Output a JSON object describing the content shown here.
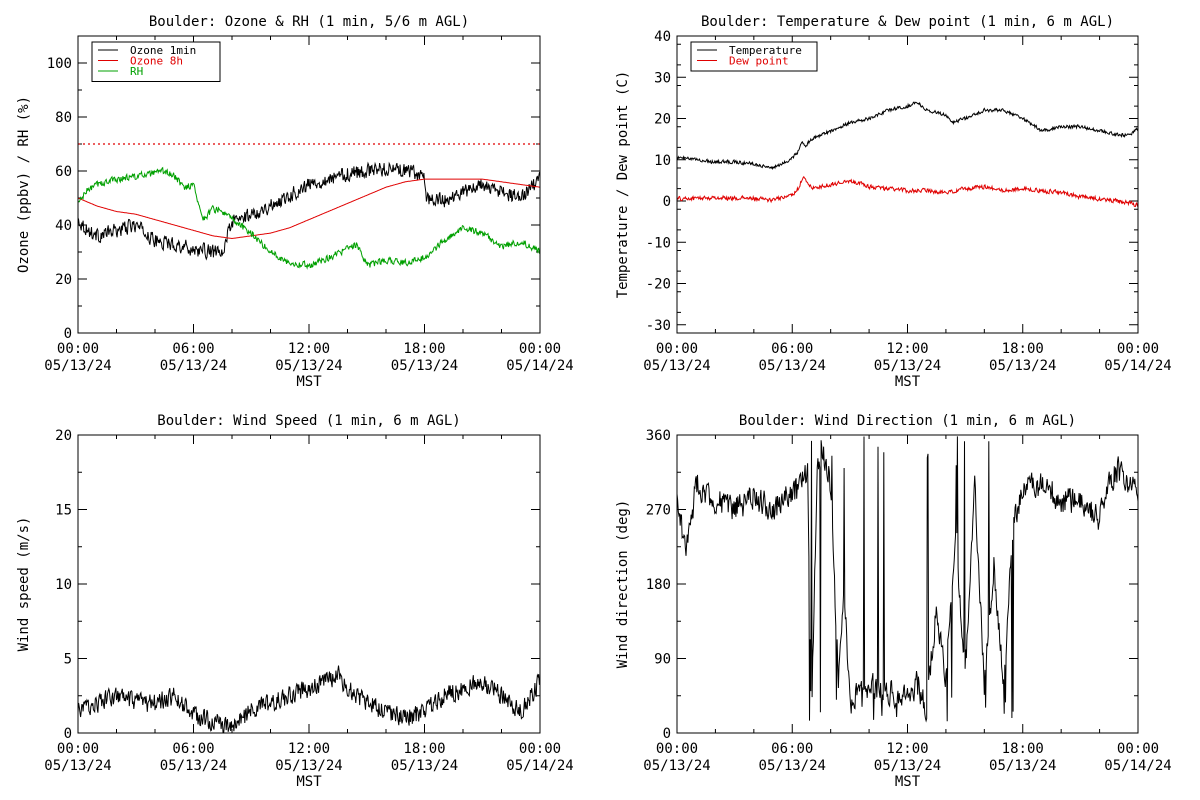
{
  "time_axis": {
    "unit": "hours since 05/13/24 00:00 MST",
    "tick_times": [
      "00:00",
      "06:00",
      "12:00",
      "18:00",
      "00:00"
    ],
    "tick_dates": [
      "05/13/24",
      "05/13/24",
      "05/13/24",
      "05/13/24",
      "05/14/24"
    ],
    "xlabel": "MST"
  },
  "chart_data": [
    {
      "type": "line",
      "title": "Boulder: Ozone & RH (1 min, 5/6 m AGL)",
      "xlabel": "MST",
      "ylabel": "Ozone (ppbv) / RH (%)",
      "xlim": [
        0,
        24
      ],
      "ylim": [
        0,
        110
      ],
      "yticks": [
        "0",
        "20",
        "40",
        "60",
        "80",
        "100"
      ],
      "legend_position": "top-left",
      "reference_line": {
        "y": 70,
        "color": "#e00000",
        "style": "dotted"
      },
      "series": [
        {
          "name": "Ozone 1min",
          "color": "#000000",
          "noise": 2.5,
          "x": [
            0,
            0.5,
            1,
            2,
            3,
            4,
            5,
            6,
            7,
            7.6,
            7.7,
            8,
            9,
            10,
            11,
            12,
            13,
            14,
            15,
            16,
            17,
            18,
            18.1,
            19,
            20,
            21,
            22,
            23,
            24
          ],
          "y": [
            42,
            38,
            36,
            38,
            40,
            34,
            33,
            31,
            30,
            29,
            36,
            41,
            44,
            47,
            51,
            55,
            57,
            59,
            60,
            61,
            60,
            58,
            50,
            49,
            52,
            55,
            52,
            50,
            57
          ]
        },
        {
          "name": "Ozone 8h",
          "color": "#e00000",
          "noise": 0,
          "x": [
            0,
            1,
            2,
            3,
            4,
            5,
            6,
            7,
            8,
            9,
            10,
            11,
            12,
            13,
            14,
            15,
            16,
            17,
            18,
            19,
            20,
            21,
            22,
            23,
            24
          ],
          "y": [
            50,
            47,
            45,
            44,
            42,
            40,
            38,
            36,
            35,
            36,
            37,
            39,
            42,
            45,
            48,
            51,
            54,
            56,
            57,
            57,
            57,
            57,
            56,
            55,
            54
          ]
        },
        {
          "name": "RH",
          "color": "#00a000",
          "noise": 1.2,
          "x": [
            0,
            0.5,
            1,
            1.5,
            2,
            3,
            4,
            4.5,
            5,
            5.5,
            6,
            6.5,
            7,
            7.5,
            8,
            9,
            10,
            11,
            12,
            13,
            14,
            14.5,
            15,
            16,
            17,
            18,
            19,
            20,
            21,
            22,
            23,
            24
          ],
          "y": [
            48,
            53,
            55,
            56,
            57,
            58,
            59,
            60,
            58,
            54,
            55,
            42,
            46,
            45,
            42,
            37,
            30,
            26,
            25,
            28,
            31,
            33,
            25,
            27,
            26,
            28,
            34,
            39,
            37,
            32,
            34,
            30
          ]
        }
      ]
    },
    {
      "type": "line",
      "title": "Boulder: Temperature & Dew point (1 min, 6 m AGL)",
      "xlabel": "MST",
      "ylabel": "Temperature / Dew point (C)",
      "xlim": [
        0,
        24
      ],
      "ylim": [
        -32,
        40
      ],
      "yticks": [
        "-30",
        "-20",
        "-10",
        "0",
        "10",
        "20",
        "30",
        "40"
      ],
      "legend_position": "top-left",
      "series": [
        {
          "name": "Temperature",
          "color": "#000000",
          "noise": 0.4,
          "x": [
            0,
            1,
            2,
            3,
            4,
            5,
            5.5,
            6,
            6.3,
            6.5,
            6.7,
            7,
            8,
            9,
            10,
            11,
            12,
            12.5,
            13,
            14,
            14.3,
            15,
            16,
            17,
            18,
            19,
            20,
            21,
            22,
            23,
            23.5,
            24
          ],
          "y": [
            10.5,
            10,
            9.5,
            9.5,
            9,
            8,
            9,
            10.5,
            12,
            14,
            13.5,
            15,
            17,
            19,
            20,
            22,
            23,
            24,
            22,
            21,
            19,
            20,
            22,
            22,
            20,
            17,
            18,
            18,
            17,
            16,
            16,
            17.5
          ]
        },
        {
          "name": "Dew point",
          "color": "#e00000",
          "noise": 0.5,
          "x": [
            0,
            2,
            4,
            5,
            6,
            6.3,
            6.6,
            7,
            8,
            9,
            10,
            11,
            12,
            13,
            14,
            15,
            16,
            17,
            18,
            19,
            20,
            21,
            22,
            23,
            24
          ],
          "y": [
            0.5,
            0.8,
            0.6,
            0.2,
            1.5,
            3,
            6,
            3,
            4,
            5,
            3.5,
            3,
            2.5,
            2.5,
            2,
            3,
            3.5,
            2.5,
            3,
            2.5,
            2,
            1,
            0.5,
            0,
            -1
          ]
        }
      ]
    },
    {
      "type": "line",
      "title": "Boulder: Wind Speed (1 min, 6 m AGL)",
      "xlabel": "MST",
      "ylabel": "Wind speed (m/s)",
      "xlim": [
        0,
        24
      ],
      "ylim": [
        0,
        20
      ],
      "yticks": [
        "0",
        "5",
        "10",
        "15",
        "20"
      ],
      "series": [
        {
          "name": "",
          "color": "#000000",
          "noise": 0.6,
          "x": [
            0,
            1,
            2,
            3,
            4,
            5,
            6,
            7,
            7.5,
            8,
            9,
            10,
            11,
            12,
            13,
            13.5,
            14,
            15,
            16,
            17,
            18,
            19,
            20,
            21,
            22,
            23,
            24
          ],
          "y": [
            1.5,
            2,
            2.5,
            2,
            2,
            2.5,
            1.2,
            0.8,
            0.5,
            0.4,
            1.5,
            2,
            2.5,
            3,
            3.5,
            4,
            3,
            2,
            1.5,
            1,
            1.5,
            2.5,
            3,
            3.5,
            2.5,
            1.5,
            3.5
          ]
        }
      ]
    },
    {
      "type": "line",
      "title": "Boulder: Wind Direction (1 min, 6 m AGL)",
      "xlabel": "MST",
      "ylabel": "Wind direction (deg)",
      "xlim": [
        0,
        24
      ],
      "ylim": [
        0,
        360
      ],
      "yticks": [
        "0",
        "90",
        "180",
        "270",
        "360"
      ],
      "series": [
        {
          "name": "",
          "color": "#000000",
          "noise": 15,
          "x": [
            0,
            0.5,
            1,
            2,
            3,
            4,
            5,
            6,
            6.5,
            6.8,
            7,
            7.3,
            7.6,
            8,
            8.4,
            8.7,
            9,
            10,
            11,
            12,
            12.5,
            13,
            13.5,
            14,
            14.5,
            15,
            15.5,
            16,
            16.5,
            17,
            17.5,
            18,
            19,
            20,
            21,
            22,
            22.5,
            23,
            23.5,
            24
          ],
          "y": [
            280,
            220,
            300,
            280,
            270,
            285,
            270,
            290,
            300,
            320,
            10,
            330,
            340,
            300,
            60,
            180,
            40,
            60,
            50,
            40,
            60,
            30,
            150,
            60,
            250,
            70,
            300,
            60,
            200,
            60,
            250,
            300,
            300,
            280,
            280,
            260,
            300,
            320,
            300,
            290
          ]
        }
      ]
    }
  ]
}
